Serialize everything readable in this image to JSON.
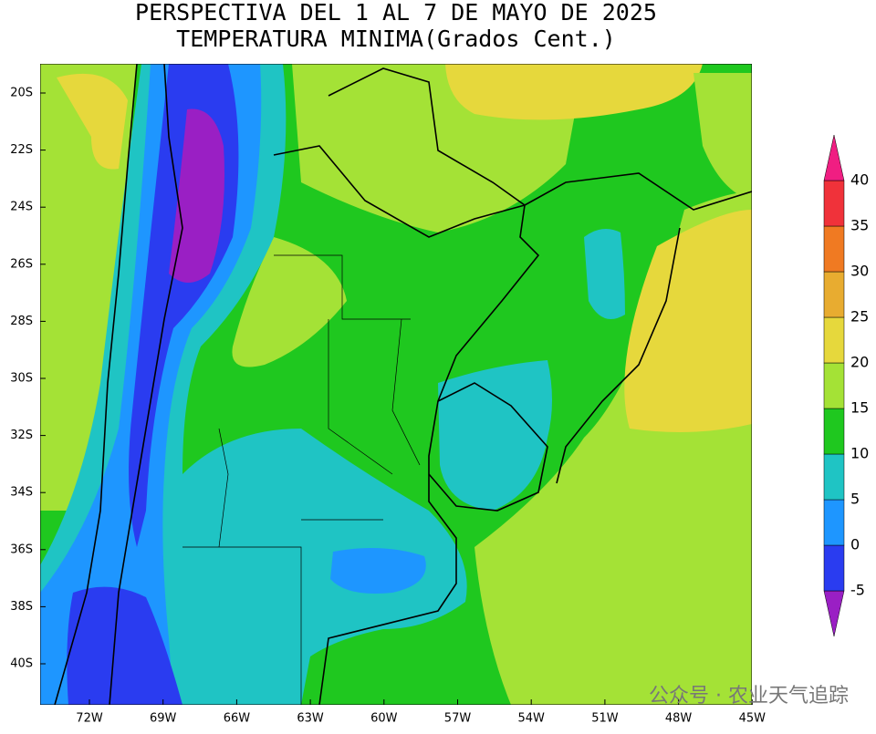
{
  "title": [
    "PERSPECTIVA DEL 1 AL 7 DE MAYO DE 2025",
    "TEMPERATURA MINIMA(Grados Cent.)"
  ],
  "lat_labels": [
    "20S",
    "22S",
    "24S",
    "26S",
    "28S",
    "30S",
    "32S",
    "34S",
    "36S",
    "38S",
    "40S"
  ],
  "lon_labels": [
    "72W",
    "69W",
    "66W",
    "63W",
    "60W",
    "57W",
    "54W",
    "51W",
    "48W",
    "45W"
  ],
  "colorbar": {
    "levels": [
      -5,
      0,
      5,
      10,
      15,
      20,
      25,
      30,
      35,
      40
    ],
    "colors": [
      "#9a1fc4",
      "#2a3cf0",
      "#1e96ff",
      "#1fc4c4",
      "#1fc81f",
      "#a4e236",
      "#e6d83c",
      "#e8ac30",
      "#f07a22",
      "#f0323a",
      "#f01e82"
    ]
  },
  "watermark": "公众号 · 农业天气追踪"
}
